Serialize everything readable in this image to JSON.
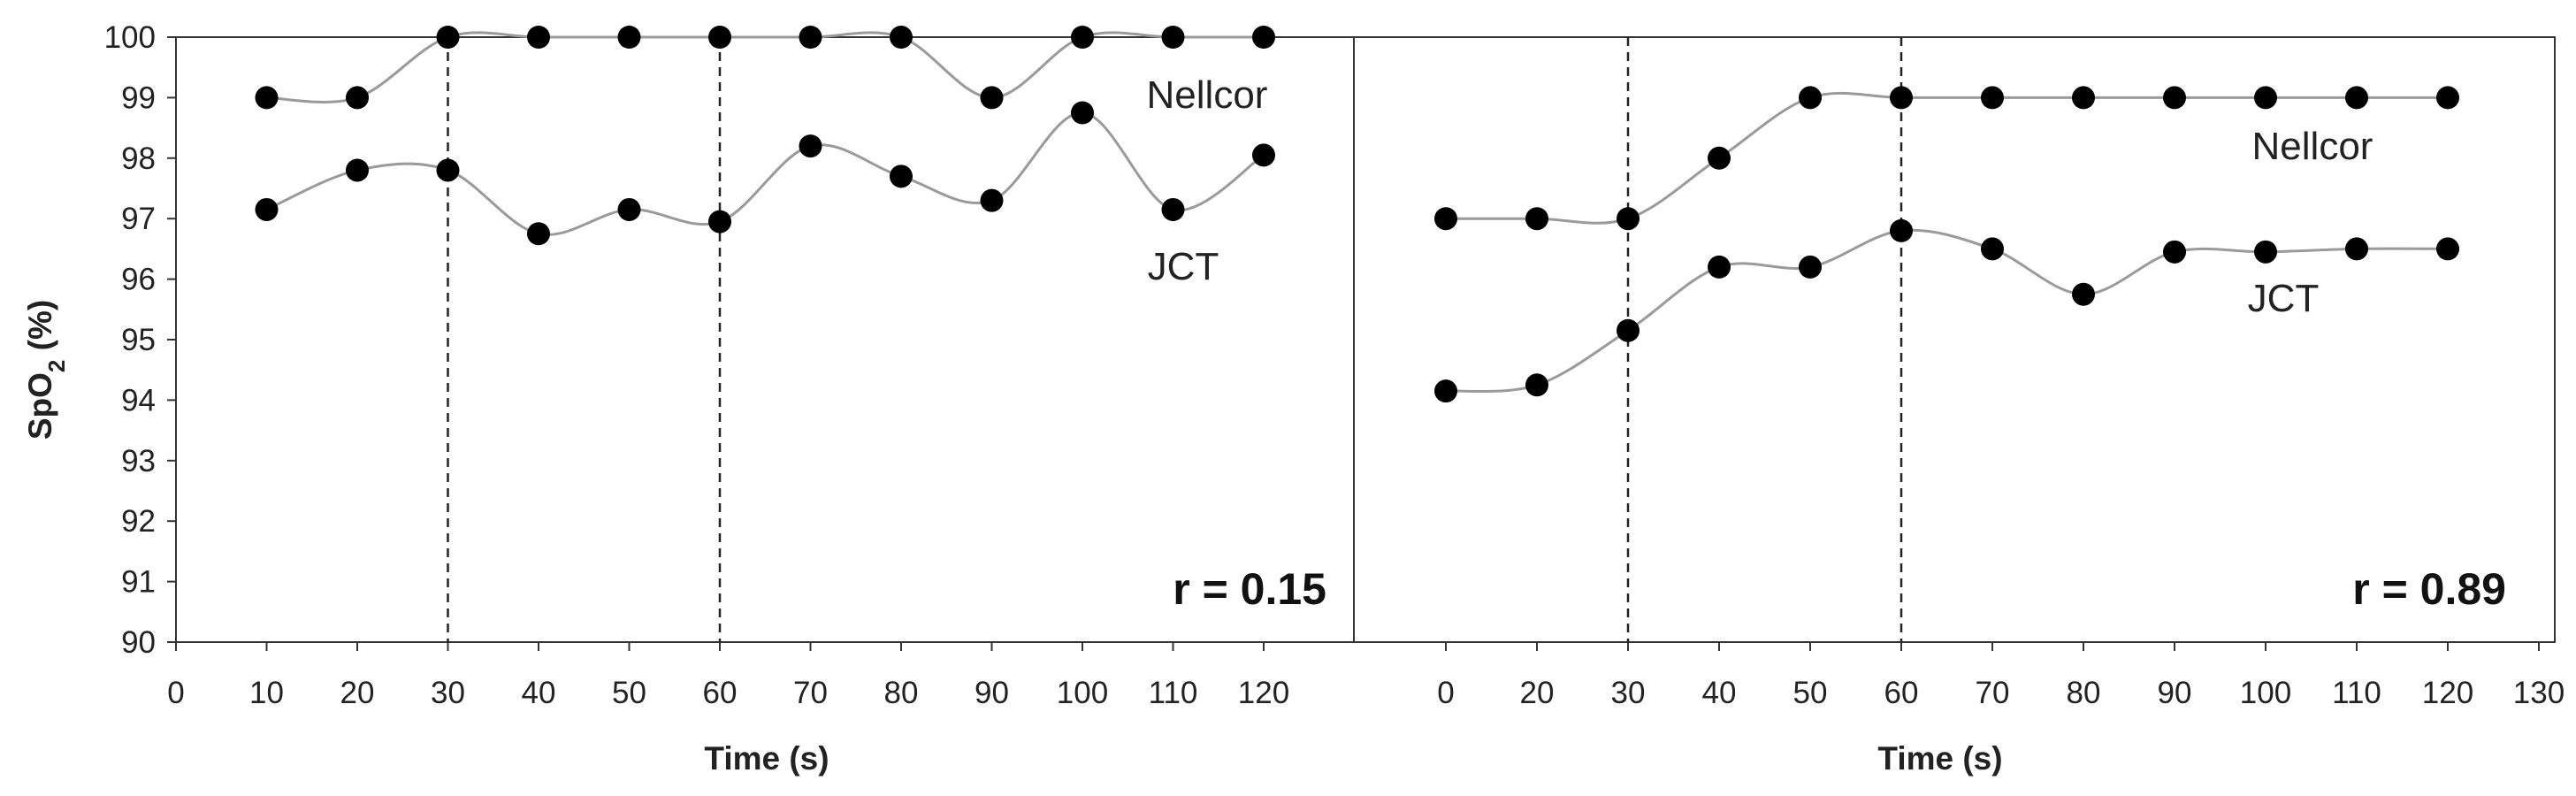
{
  "figure": {
    "y_label_main": "SpO",
    "y_label_sub": "2",
    "y_label_tail": " (%)"
  },
  "chart_data": [
    {
      "type": "line",
      "xlabel": "Time (s)",
      "ylabel": "SpO2 (%)",
      "ylim": [
        90,
        100
      ],
      "yticks": [
        90,
        91,
        92,
        93,
        94,
        95,
        96,
        97,
        98,
        99,
        100
      ],
      "xlim": [
        0,
        130
      ],
      "xticks": [
        "0",
        "10",
        "20",
        "30",
        "40",
        "50",
        "60",
        "70",
        "80",
        "90",
        "100",
        "110",
        "120"
      ],
      "x": [
        10,
        20,
        30,
        40,
        50,
        60,
        70,
        80,
        90,
        100,
        110,
        120
      ],
      "vertical_lines": [
        30,
        60
      ],
      "annotation": "r = 0.15",
      "series": [
        {
          "name": "Nellcor",
          "values": [
            99,
            99,
            100,
            100,
            100,
            100,
            100,
            100,
            99,
            100,
            100,
            100
          ]
        },
        {
          "name": "JCT",
          "values": [
            97.15,
            97.8,
            97.8,
            96.75,
            97.15,
            96.95,
            98.2,
            97.7,
            97.3,
            98.75,
            97.15,
            98.05
          ]
        }
      ],
      "grid": false,
      "marker_color": "#000000",
      "line_color": "#9a9a9a"
    },
    {
      "type": "line",
      "xlabel": "Time (s)",
      "ylabel": "",
      "ylim": [
        90,
        100
      ],
      "xticks": [
        "0",
        "20",
        "30",
        "40",
        "50",
        "60",
        "70",
        "80",
        "90",
        "100",
        "110",
        "120",
        "130"
      ],
      "x": [
        0,
        20,
        30,
        40,
        50,
        60,
        70,
        80,
        90,
        100,
        110,
        120
      ],
      "vertical_lines": [
        30,
        60
      ],
      "annotation": "r = 0.89",
      "series": [
        {
          "name": "Nellcor",
          "values": [
            97,
            97,
            97,
            98,
            99,
            99,
            99,
            99,
            99,
            99,
            99,
            99
          ]
        },
        {
          "name": "JCT",
          "values": [
            94.15,
            94.25,
            95.15,
            96.2,
            96.2,
            96.8,
            96.5,
            95.75,
            96.45,
            96.45,
            96.5,
            96.5
          ]
        }
      ],
      "grid": false,
      "marker_color": "#000000",
      "line_color": "#9a9a9a"
    }
  ]
}
